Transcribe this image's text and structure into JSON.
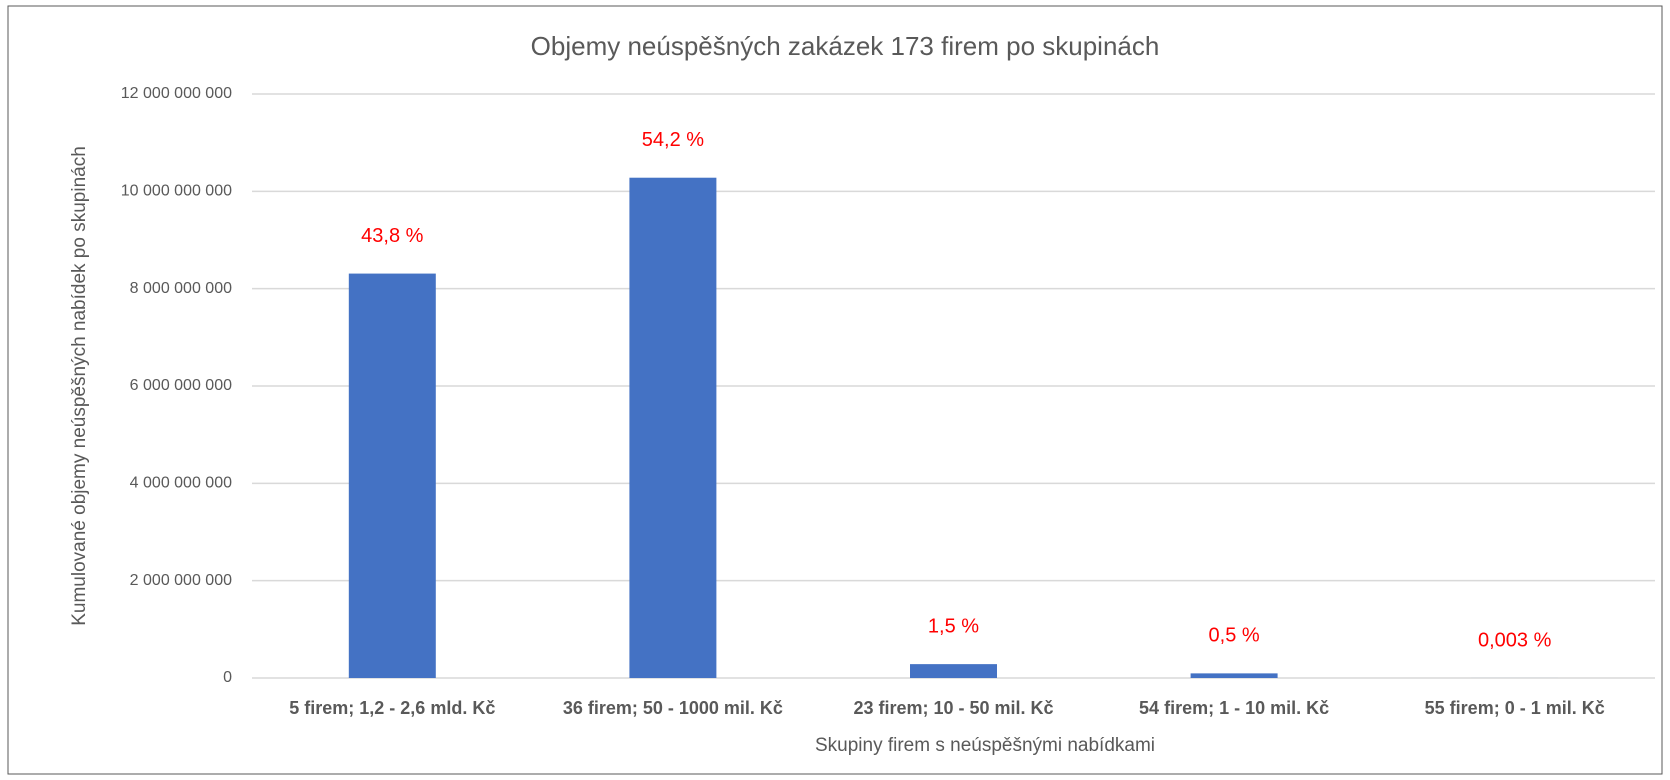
{
  "chart_data": {
    "type": "bar",
    "title": "Objemy neúspěšných zakázek 173 firem po skupinách",
    "xlabel": "Skupiny firem s neúspěšnými nabídkami",
    "ylabel": "Kumulované objemy neúspěšných nabídek po skupinách",
    "categories": [
      "5 firem; 1,2 - 2,6 mld. Kč",
      "36 firem; 50 - 1000 mil. Kč",
      "23 firem; 10 - 50 mil. Kč",
      "54 firem; 1 - 10 mil. Kč",
      "55 firem; 0 - 1 mil. Kč"
    ],
    "values": [
      8310000000,
      10280000000,
      285000000,
      95000000,
      570000
    ],
    "annotations": [
      "43,8 %",
      "54,2 %",
      "1,5 %",
      "0,5 %",
      "0,003 %"
    ],
    "color": "#4472c4",
    "annotation_color": "#ff0000",
    "ylim": [
      0,
      12000000000
    ],
    "yticks": [
      0,
      {
        "value": 2000000000,
        "label": "2 000 000 000"
      },
      {
        "value": 4000000000,
        "label": "4 000 000 000"
      },
      {
        "value": 6000000000,
        "label": "6 000 000 000"
      },
      {
        "value": 8000000000,
        "label": "8 000 000 000"
      },
      {
        "value": 10000000000,
        "label": "10 000 000 000"
      },
      {
        "value": 12000000000,
        "label": "12 000 000 000"
      }
    ],
    "grid": true
  }
}
